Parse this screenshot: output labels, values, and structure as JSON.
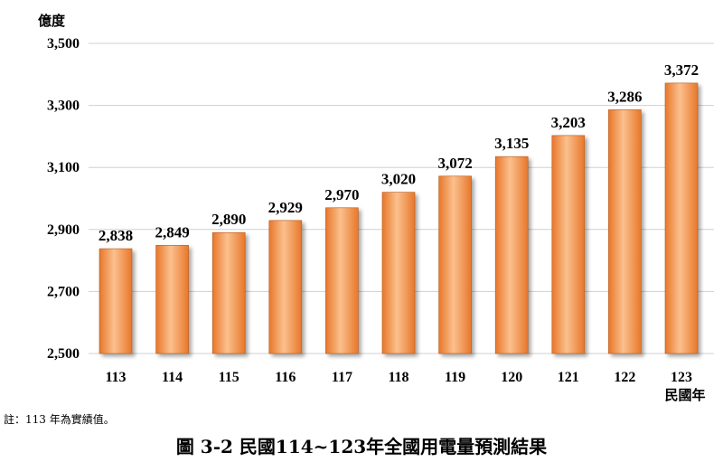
{
  "chart_data": {
    "type": "bar",
    "title": "",
    "ylabel": "億度",
    "xlabel": "民國年",
    "ylim": [
      2500,
      3500
    ],
    "yticks": [
      2500,
      2700,
      2900,
      3100,
      3300,
      3500
    ],
    "ytick_labels": [
      "2,500",
      "2,700",
      "2,900",
      "3,100",
      "3,300",
      "3,500"
    ],
    "categories": [
      "113",
      "114",
      "115",
      "116",
      "117",
      "118",
      "119",
      "120",
      "121",
      "122",
      "123"
    ],
    "values": [
      2838,
      2849,
      2890,
      2929,
      2970,
      3020,
      3072,
      3135,
      3203,
      3286,
      3372
    ],
    "value_labels": [
      "2,838",
      "2,849",
      "2,890",
      "2,929",
      "2,970",
      "3,020",
      "3,072",
      "3,135",
      "3,203",
      "3,286",
      "3,372"
    ],
    "grid": true,
    "legend": "none",
    "colors": {
      "bar_light": "#fbc08e",
      "bar_dark": "#e8772a",
      "bar_edge": "#b65a1c",
      "grid": "#d0d0d0"
    }
  },
  "note": "註：113 年為實績值。",
  "caption": "圖 3-2  民國114~123年全國用電量預測結果"
}
